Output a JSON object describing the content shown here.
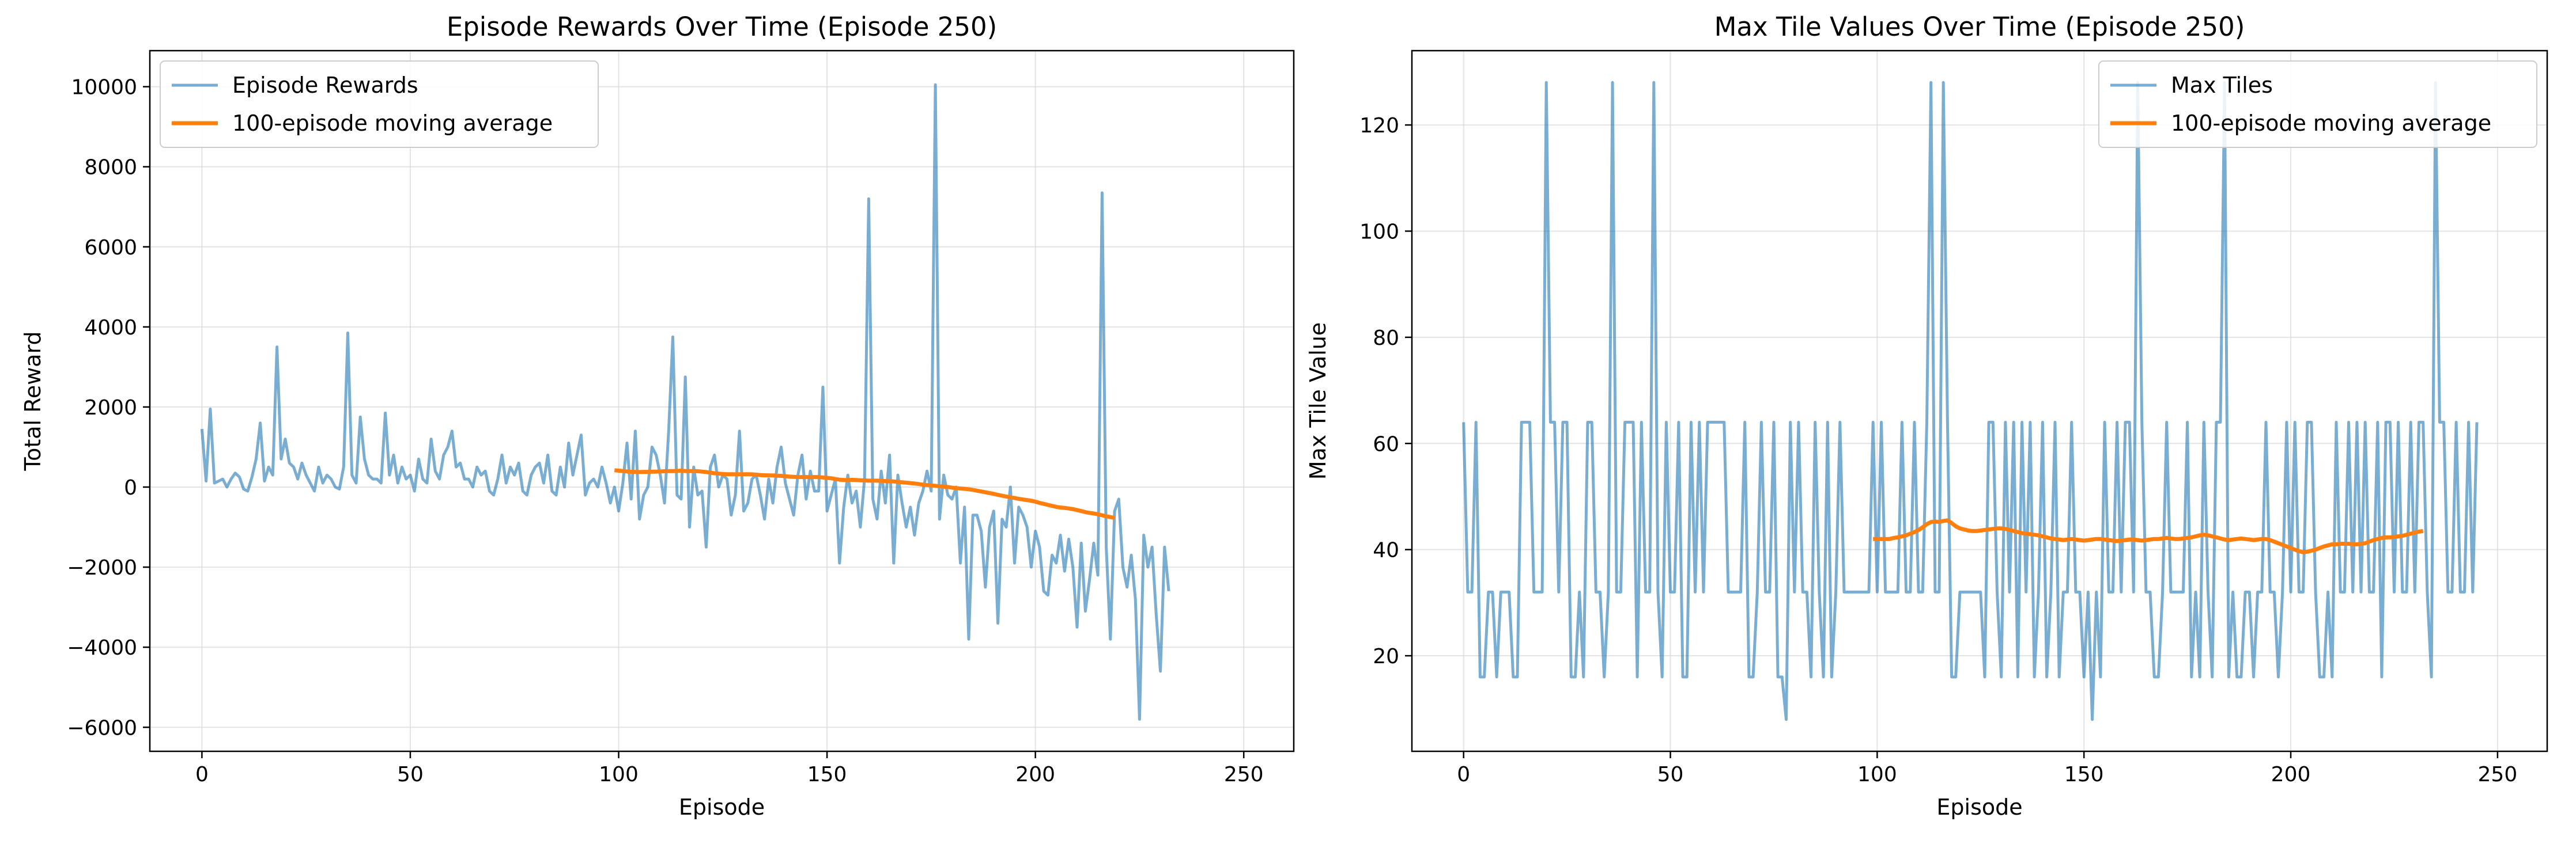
{
  "colors": {
    "raw": "#1f77b4",
    "ma": "#ff7f0e",
    "grid": "#d9d9d9",
    "frame": "#000000"
  },
  "chart_data": [
    {
      "type": "line",
      "title": "Episode Rewards Over Time (Episode 250)",
      "xlabel": "Episode",
      "ylabel": "Total Reward",
      "xlim": [
        -12.5,
        262
      ],
      "ylim": [
        -6600,
        10900
      ],
      "xticks": [
        0,
        50,
        100,
        150,
        200,
        250
      ],
      "yticks": [
        -6000,
        -4000,
        -2000,
        0,
        2000,
        4000,
        6000,
        8000,
        10000
      ],
      "ytick_labels": [
        "−6000",
        "−4000",
        "−2000",
        "0",
        "2000",
        "4000",
        "6000",
        "8000",
        "10000"
      ],
      "grid": true,
      "legend": "top-left",
      "series": [
        {
          "name": "Episode Rewards",
          "x_start": 0,
          "values": [
            1450,
            150,
            1950,
            100,
            150,
            200,
            0,
            200,
            350,
            250,
            -50,
            -100,
            250,
            700,
            1600,
            150,
            500,
            300,
            3500,
            700,
            1200,
            600,
            500,
            200,
            600,
            300,
            100,
            -100,
            500,
            100,
            300,
            200,
            0,
            -50,
            500,
            3850,
            300,
            100,
            1750,
            700,
            300,
            200,
            200,
            100,
            1850,
            300,
            800,
            100,
            500,
            200,
            300,
            -100,
            700,
            200,
            100,
            1200,
            400,
            200,
            800,
            1000,
            1400,
            500,
            600,
            200,
            200,
            0,
            500,
            300,
            400,
            -100,
            -200,
            200,
            800,
            100,
            500,
            300,
            600,
            -100,
            -200,
            300,
            500,
            600,
            100,
            800,
            -100,
            -200,
            500,
            0,
            1100,
            300,
            800,
            1300,
            -200,
            100,
            200,
            0,
            500,
            100,
            -400,
            0,
            -600,
            100,
            1100,
            -300,
            1400,
            -800,
            -200,
            0,
            1000,
            800,
            300,
            -400,
            1400,
            3750,
            -200,
            -300,
            2750,
            -1000,
            500,
            -200,
            -100,
            -1500,
            500,
            800,
            0,
            300,
            200,
            -700,
            -200,
            1400,
            -600,
            -400,
            200,
            300,
            -200,
            -800,
            200,
            -400,
            500,
            1000,
            100,
            -300,
            -700,
            300,
            800,
            -300,
            400,
            -100,
            -100,
            2500,
            -600,
            -200,
            200,
            -1900,
            -500,
            300,
            -400,
            -100,
            -1000,
            200,
            7200,
            -300,
            -800,
            400,
            -400,
            800,
            -1900,
            300,
            -400,
            -1000,
            -500,
            -1200,
            -400,
            -100,
            400,
            -100,
            10050,
            -800,
            300,
            -200,
            -300,
            0,
            -1900,
            -500,
            -3800,
            -700,
            -700,
            -1100,
            -2500,
            -1000,
            -600,
            -3400,
            -800,
            -1000,
            0,
            -1900,
            -500,
            -700,
            -1000,
            -2000,
            -1100,
            -1500,
            -2600,
            -2700,
            -1700,
            -1900,
            -1200,
            -2100,
            -1300,
            -2000,
            -3500,
            -1400,
            -3100,
            -2300,
            -1400,
            -2200,
            7350,
            -1500,
            -3800,
            -600,
            -300,
            -2000,
            -2500,
            -1700,
            -2800,
            -5800,
            -1200,
            -2000,
            -1500,
            -3200,
            -4600,
            -1500,
            -2600
          ]
        },
        {
          "name": "100-episode moving average",
          "x_start": 99,
          "values": [
            420,
            410,
            400,
            390,
            380,
            380,
            375,
            380,
            380,
            385,
            385,
            390,
            395,
            400,
            400,
            405,
            410,
            400,
            400,
            400,
            395,
            385,
            375,
            360,
            345,
            335,
            325,
            320,
            320,
            320,
            320,
            320,
            320,
            318,
            310,
            300,
            295,
            290,
            290,
            285,
            280,
            270,
            260,
            255,
            250,
            250,
            250,
            250,
            250,
            250,
            240,
            230,
            220,
            200,
            185,
            175,
            175,
            180,
            175,
            170,
            165,
            160,
            160,
            160,
            155,
            150,
            145,
            140,
            130,
            120,
            110,
            100,
            90,
            75,
            60,
            50,
            40,
            30,
            20,
            10,
            0,
            -15,
            -25,
            -35,
            -45,
            -55,
            -70,
            -90,
            -110,
            -130,
            -150,
            -170,
            -195,
            -215,
            -235,
            -255,
            -275,
            -295,
            -310,
            -325,
            -340,
            -365,
            -395,
            -420,
            -445,
            -470,
            -495,
            -510,
            -520,
            -535,
            -550,
            -575,
            -600,
            -625,
            -645,
            -660,
            -680,
            -705,
            -730,
            -750,
            -770
          ]
        }
      ]
    },
    {
      "type": "line",
      "title": "Max Tile Values Over Time (Episode 250)",
      "xlabel": "Episode",
      "ylabel": "Max Tile Value",
      "xlim": [
        -12.5,
        262
      ],
      "ylim": [
        2,
        134
      ],
      "xticks": [
        0,
        50,
        100,
        150,
        200,
        250
      ],
      "yticks": [
        20,
        40,
        60,
        80,
        100,
        120
      ],
      "ytick_labels": [
        "20",
        "40",
        "60",
        "80",
        "100",
        "120"
      ],
      "grid": true,
      "legend": "top-right",
      "series": [
        {
          "name": "Max Tiles",
          "x_start": 0,
          "values": [
            64,
            32,
            32,
            64,
            16,
            16,
            32,
            32,
            16,
            32,
            32,
            32,
            16,
            16,
            64,
            64,
            64,
            32,
            32,
            32,
            128,
            64,
            64,
            32,
            64,
            64,
            16,
            16,
            32,
            16,
            64,
            64,
            32,
            32,
            16,
            32,
            128,
            32,
            32,
            64,
            64,
            64,
            16,
            64,
            32,
            32,
            128,
            32,
            16,
            64,
            32,
            32,
            64,
            16,
            16,
            64,
            32,
            64,
            32,
            64,
            64,
            64,
            64,
            64,
            32,
            32,
            32,
            32,
            64,
            16,
            16,
            32,
            64,
            32,
            32,
            64,
            16,
            16,
            8,
            64,
            32,
            64,
            32,
            32,
            16,
            64,
            32,
            16,
            64,
            16,
            32,
            64,
            32,
            32,
            32,
            32,
            32,
            32,
            32,
            64,
            32,
            64,
            32,
            32,
            32,
            32,
            64,
            32,
            32,
            64,
            32,
            32,
            64,
            128,
            32,
            32,
            128,
            64,
            16,
            16,
            32,
            32,
            32,
            32,
            32,
            32,
            16,
            64,
            64,
            32,
            16,
            64,
            32,
            64,
            16,
            64,
            32,
            64,
            16,
            32,
            64,
            16,
            32,
            64,
            16,
            32,
            32,
            64,
            32,
            32,
            16,
            32,
            8,
            32,
            16,
            64,
            32,
            32,
            64,
            32,
            64,
            64,
            32,
            128,
            64,
            32,
            32,
            16,
            16,
            32,
            64,
            32,
            32,
            32,
            32,
            64,
            16,
            32,
            16,
            64,
            32,
            16,
            64,
            64,
            128,
            16,
            32,
            16,
            16,
            32,
            32,
            16,
            32,
            32,
            64,
            32,
            32,
            16,
            32,
            64,
            32,
            64,
            32,
            32,
            64,
            64,
            32,
            16,
            16,
            32,
            16,
            64,
            32,
            32,
            64,
            32,
            64,
            32,
            64,
            32,
            32,
            64,
            16,
            64,
            64,
            32,
            64,
            32,
            32,
            64,
            32,
            64,
            64,
            32,
            16,
            128,
            64,
            64,
            32,
            32,
            64,
            32,
            32,
            64,
            32,
            64
          ]
        },
        {
          "name": "100-episode moving average",
          "x_start": 99,
          "values": [
            42,
            42,
            42,
            42,
            42,
            42.2,
            42.3,
            42.5,
            42.7,
            43,
            43.3,
            43.7,
            44.2,
            44.8,
            45.2,
            45.3,
            45.2,
            45.4,
            45.5,
            45,
            44.4,
            44,
            43.8,
            43.6,
            43.5,
            43.5,
            43.6,
            43.7,
            43.8,
            43.9,
            44,
            44,
            43.9,
            43.7,
            43.5,
            43.3,
            43.1,
            43,
            42.9,
            42.8,
            42.7,
            42.5,
            42.3,
            42.1,
            42,
            41.9,
            41.8,
            41.9,
            42,
            41.9,
            41.8,
            41.7,
            41.8,
            41.9,
            42,
            42,
            41.9,
            41.8,
            41.7,
            41.6,
            41.7,
            41.8,
            41.9,
            41.9,
            41.8,
            41.7,
            41.8,
            41.9,
            42,
            42,
            42.1,
            42.2,
            42.1,
            42,
            42,
            42.1,
            42.2,
            42.3,
            42.5,
            42.7,
            42.8,
            42.7,
            42.5,
            42.3,
            42.1,
            41.9,
            41.8,
            41.9,
            42,
            42.1,
            42,
            41.9,
            41.8,
            41.9,
            42,
            42,
            41.8,
            41.5,
            41.2,
            40.9,
            40.6,
            40.3,
            40,
            39.7,
            39.5,
            39.6,
            39.8,
            40,
            40.3,
            40.6,
            40.8,
            41,
            41,
            41.1,
            41.1,
            41.1,
            41,
            41,
            41.1,
            41.2,
            41.5,
            41.8,
            42,
            42.2,
            42.3,
            42.3,
            42.4,
            42.5,
            42.6,
            42.8,
            43,
            43.2,
            43.4,
            43.5
          ]
        }
      ]
    }
  ]
}
